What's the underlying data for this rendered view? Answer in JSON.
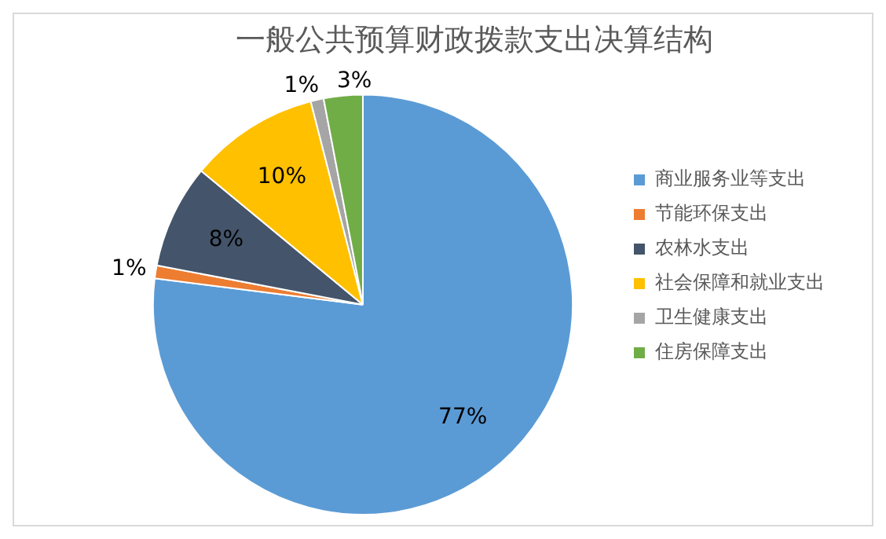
{
  "chart_data": {
    "type": "pie",
    "title": "一般公共预算财政拨款支出决算结构",
    "categories": [
      "商业服务业等支出",
      "节能环保支出",
      "农林水支出",
      "社会保障和就业支出",
      "卫生健康支出",
      "住房保障支出"
    ],
    "values": [
      77,
      1,
      8,
      10,
      1,
      3
    ],
    "value_labels": [
      "77%",
      "1%",
      "8%",
      "10%",
      "1%",
      "3%"
    ],
    "colors": [
      "#5b9bd5",
      "#ed7d31",
      "#44546a",
      "#ffc000",
      "#a5a5a5",
      "#70ad47"
    ],
    "legend": "right"
  }
}
